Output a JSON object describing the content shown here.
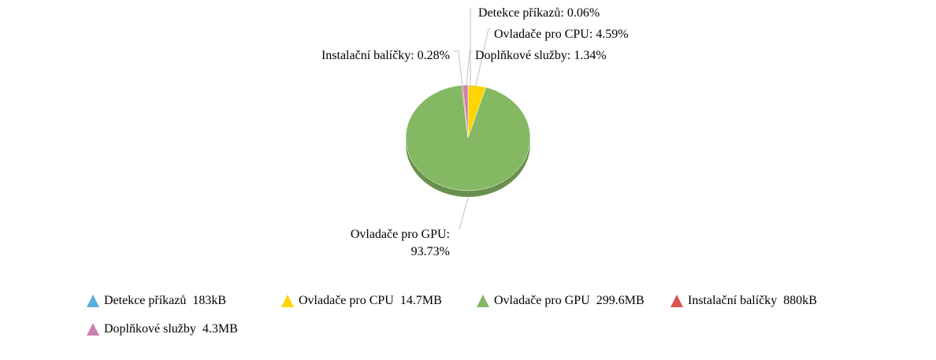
{
  "chart_data": {
    "type": "pie",
    "title": "",
    "slices": [
      {
        "label": "Detekce příkazů",
        "percent": 0.06,
        "percent_label": "0.06%",
        "size_label": "183kB",
        "color": "#5aaedf"
      },
      {
        "label": "Ovladače pro CPU",
        "percent": 4.59,
        "percent_label": "4.59%",
        "size_label": "14.7MB",
        "color": "#ffd400"
      },
      {
        "label": "Ovladače pro GPU",
        "percent": 93.73,
        "percent_label": "93.73%",
        "size_label": "299.6MB",
        "color": "#84b862"
      },
      {
        "label": "Instalační balíčky",
        "percent": 0.28,
        "percent_label": "0.28%",
        "size_label": "880kB",
        "color": "#d9534f"
      },
      {
        "label": "Doplňkové služby",
        "percent": 1.34,
        "percent_label": "1.34%",
        "size_label": "4.3MB",
        "color": "#cc7fb0"
      }
    ],
    "legend_position": "bottom",
    "style": "3d-tilted"
  }
}
